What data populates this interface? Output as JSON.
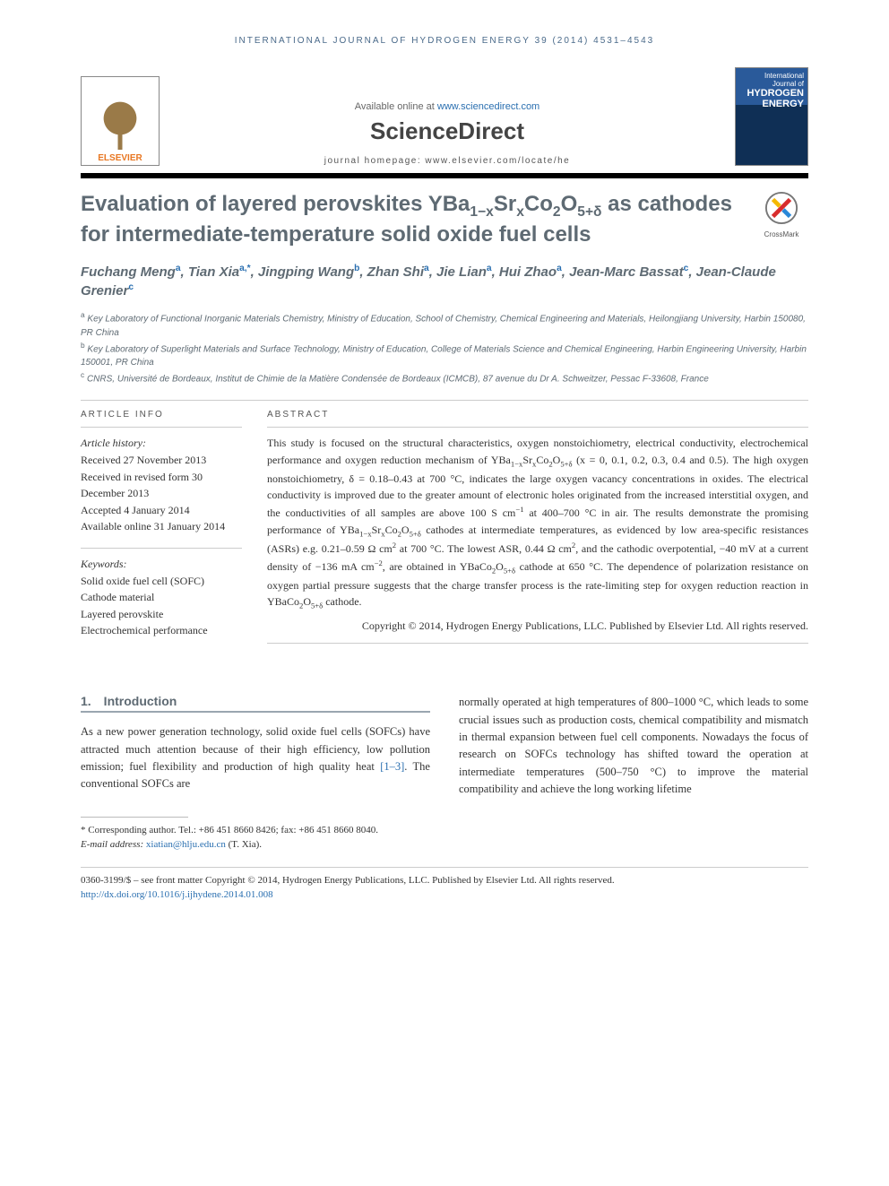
{
  "colors": {
    "accent_blue": "#2a6fb0",
    "heading_gray": "#5e6a73",
    "orange": "#f58220",
    "text": "#333333",
    "rule": "#cccccc",
    "black": "#000000"
  },
  "running_head": "INTERNATIONAL JOURNAL OF HYDROGEN ENERGY 39 (2014) 4531–4543",
  "masthead": {
    "elsevier": "ELSEVIER",
    "available_prefix": "Available online at ",
    "available_link": "www.sciencedirect.com",
    "sd_logo": "ScienceDirect",
    "homepage_label": "journal homepage: ",
    "homepage_url": "www.elsevier.com/locate/he",
    "cover_line1": "International Journal of",
    "cover_line2": "HYDROGEN",
    "cover_line3": "ENERGY"
  },
  "crossmark_label": "CrossMark",
  "title_html": "Evaluation of layered perovskites YBa<sub>1−x</sub>Sr<sub>x</sub>Co<sub>2</sub>O<sub>5+δ</sub> as cathodes for intermediate-temperature solid oxide fuel cells",
  "authors_html": "Fuchang Meng<sup>a</sup>, Tian Xia<sup>a,*</sup>, Jingping Wang<sup>b</sup>, Zhan Shi<sup>a</sup>, Jie Lian<sup>a</sup>, Hui Zhao<sup>a</sup>, Jean-Marc Bassat<sup>c</sup>, Jean-Claude Grenier<sup>c</sup>",
  "affiliations": [
    "<sup>a</sup> Key Laboratory of Functional Inorganic Materials Chemistry, Ministry of Education, School of Chemistry, Chemical Engineering and Materials, Heilongjiang University, Harbin 150080, PR China",
    "<sup>b</sup> Key Laboratory of Superlight Materials and Surface Technology, Ministry of Education, College of Materials Science and Chemical Engineering, Harbin Engineering University, Harbin 150001, PR China",
    "<sup>c</sup> CNRS, Université de Bordeaux, Institut de Chimie de la Matière Condensée de Bordeaux (ICMCB), 87 avenue du Dr A. Schweitzer, Pessac F-33608, France"
  ],
  "labels": {
    "article_info": "ARTICLE INFO",
    "abstract": "ABSTRACT",
    "history": "Article history:",
    "keywords": "Keywords:"
  },
  "history": [
    "Received 27 November 2013",
    "Received in revised form 30 December 2013",
    "Accepted 4 January 2014",
    "Available online 31 January 2014"
  ],
  "keywords": [
    "Solid oxide fuel cell (SOFC)",
    "Cathode material",
    "Layered perovskite",
    "Electrochemical performance"
  ],
  "abstract_html": "This study is focused on the structural characteristics, oxygen nonstoichiometry, electrical conductivity, electrochemical performance and oxygen reduction mechanism of YBa<sub>1−x</sub>Sr<sub>x</sub>Co<sub>2</sub>O<sub>5+δ</sub> (x = 0, 0.1, 0.2, 0.3, 0.4 and 0.5). The high oxygen nonstoichiometry, δ = 0.18–0.43 at 700 °C, indicates the large oxygen vacancy concentrations in oxides. The electrical conductivity is improved due to the greater amount of electronic holes originated from the increased interstitial oxygen, and the conductivities of all samples are above 100 S cm<sup>−1</sup> at 400–700 °C in air. The results demonstrate the promising performance of YBa<sub>1−x</sub>Sr<sub>x</sub>Co<sub>2</sub>O<sub>5+δ</sub> cathodes at intermediate temperatures, as evidenced by low area-specific resistances (ASRs) e.g. 0.21–0.59 Ω cm<sup>2</sup> at 700 °C. The lowest ASR, 0.44 Ω cm<sup>2</sup>, and the cathodic overpotential, −40 mV at a current density of −136 mA cm<sup>−2</sup>, are obtained in YBaCo<sub>2</sub>O<sub>5+δ</sub> cathode at 650 °C. The dependence of polarization resistance on oxygen partial pressure suggests that the charge transfer process is the rate-limiting step for oxygen reduction reaction in YBaCo<sub>2</sub>O<sub>5+δ</sub> cathode.",
  "copyright": "Copyright © 2014, Hydrogen Energy Publications, LLC. Published by Elsevier Ltd. All rights reserved.",
  "intro_heading": "1. Introduction",
  "intro_left_html": "As a new power generation technology, solid oxide fuel cells (SOFCs) have attracted much attention because of their high efficiency, low pollution emission; fuel flexibility and production of high quality heat <span class=\"ref-link\">[1–3]</span>. The conventional SOFCs are",
  "intro_right_html": "normally operated at high temperatures of 800–1000 °C, which leads to some crucial issues such as production costs, chemical compatibility and mismatch in thermal expansion between fuel cell components. Nowadays the focus of research on SOFCs technology has shifted toward the operation at intermediate temperatures (500–750 °C) to improve the material compatibility and achieve the long working lifetime",
  "footnote": {
    "corr_label": "* Corresponding author.",
    "tel": "Tel.: +86 451 8660 8426; fax: +86 451 8660 8040.",
    "email_label": "E-mail address: ",
    "email": "xiatian@hlju.edu.cn",
    "email_who": " (T. Xia)."
  },
  "bottom": {
    "line1": "0360-3199/$ – see front matter Copyright © 2014, Hydrogen Energy Publications, LLC. Published by Elsevier Ltd. All rights reserved.",
    "doi": "http://dx.doi.org/10.1016/j.ijhydene.2014.01.008"
  }
}
